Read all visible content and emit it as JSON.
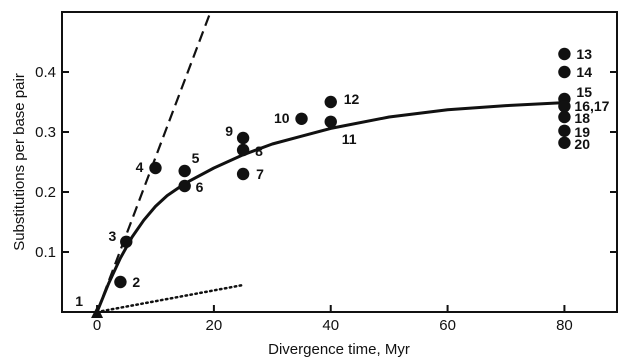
{
  "chart_data": {
    "type": "scatter",
    "title": "",
    "xlabel": "Divergence time, Myr",
    "ylabel": "Substitutions per base pair",
    "xlim": [
      -6,
      89
    ],
    "ylim": [
      0,
      0.5
    ],
    "xticks": [
      0,
      20,
      40,
      60,
      80
    ],
    "yticks": [
      0.1,
      0.2,
      0.3,
      0.4
    ],
    "xtick_labels": [
      "0",
      "20",
      "40",
      "60",
      "80"
    ],
    "ytick_labels": [
      "0.1",
      "0.2",
      "0.3",
      "0.4"
    ],
    "grid": false,
    "points": [
      {
        "label": "1",
        "x": 0,
        "y": 0.0
      },
      {
        "label": "2",
        "x": 4,
        "y": 0.05
      },
      {
        "label": "3",
        "x": 5,
        "y": 0.117
      },
      {
        "label": "4",
        "x": 10,
        "y": 0.24
      },
      {
        "label": "5",
        "x": 15,
        "y": 0.235
      },
      {
        "label": "6",
        "x": 15,
        "y": 0.21
      },
      {
        "label": "7",
        "x": 25,
        "y": 0.23
      },
      {
        "label": "8",
        "x": 25,
        "y": 0.27
      },
      {
        "label": "9",
        "x": 25,
        "y": 0.29
      },
      {
        "label": "10",
        "x": 35,
        "y": 0.322
      },
      {
        "label": "11",
        "x": 40,
        "y": 0.317
      },
      {
        "label": "12",
        "x": 40,
        "y": 0.35
      },
      {
        "label": "13",
        "x": 80,
        "y": 0.43
      },
      {
        "label": "14",
        "x": 80,
        "y": 0.4
      },
      {
        "label": "15",
        "x": 80,
        "y": 0.355
      },
      {
        "label": "16,17",
        "x": 80,
        "y": 0.343
      },
      {
        "label": "18",
        "x": 80,
        "y": 0.325
      },
      {
        "label": "19",
        "x": 80,
        "y": 0.302
      },
      {
        "label": "20",
        "x": 80,
        "y": 0.282
      }
    ],
    "fit_curve": {
      "style": "solid",
      "x": [
        0,
        2,
        4,
        6,
        8,
        10,
        12,
        15,
        20,
        25,
        30,
        35,
        40,
        50,
        60,
        70,
        80
      ],
      "y": [
        0.0,
        0.048,
        0.09,
        0.125,
        0.153,
        0.176,
        0.194,
        0.214,
        0.24,
        0.262,
        0.28,
        0.293,
        0.306,
        0.325,
        0.337,
        0.344,
        0.349
      ]
    },
    "dashed_line": {
      "style": "dashed",
      "x": [
        0,
        20
      ],
      "y": [
        0,
        0.515
      ]
    },
    "dotted_line": {
      "style": "dotted",
      "x": [
        0,
        25
      ],
      "y": [
        0,
        0.045
      ]
    }
  }
}
